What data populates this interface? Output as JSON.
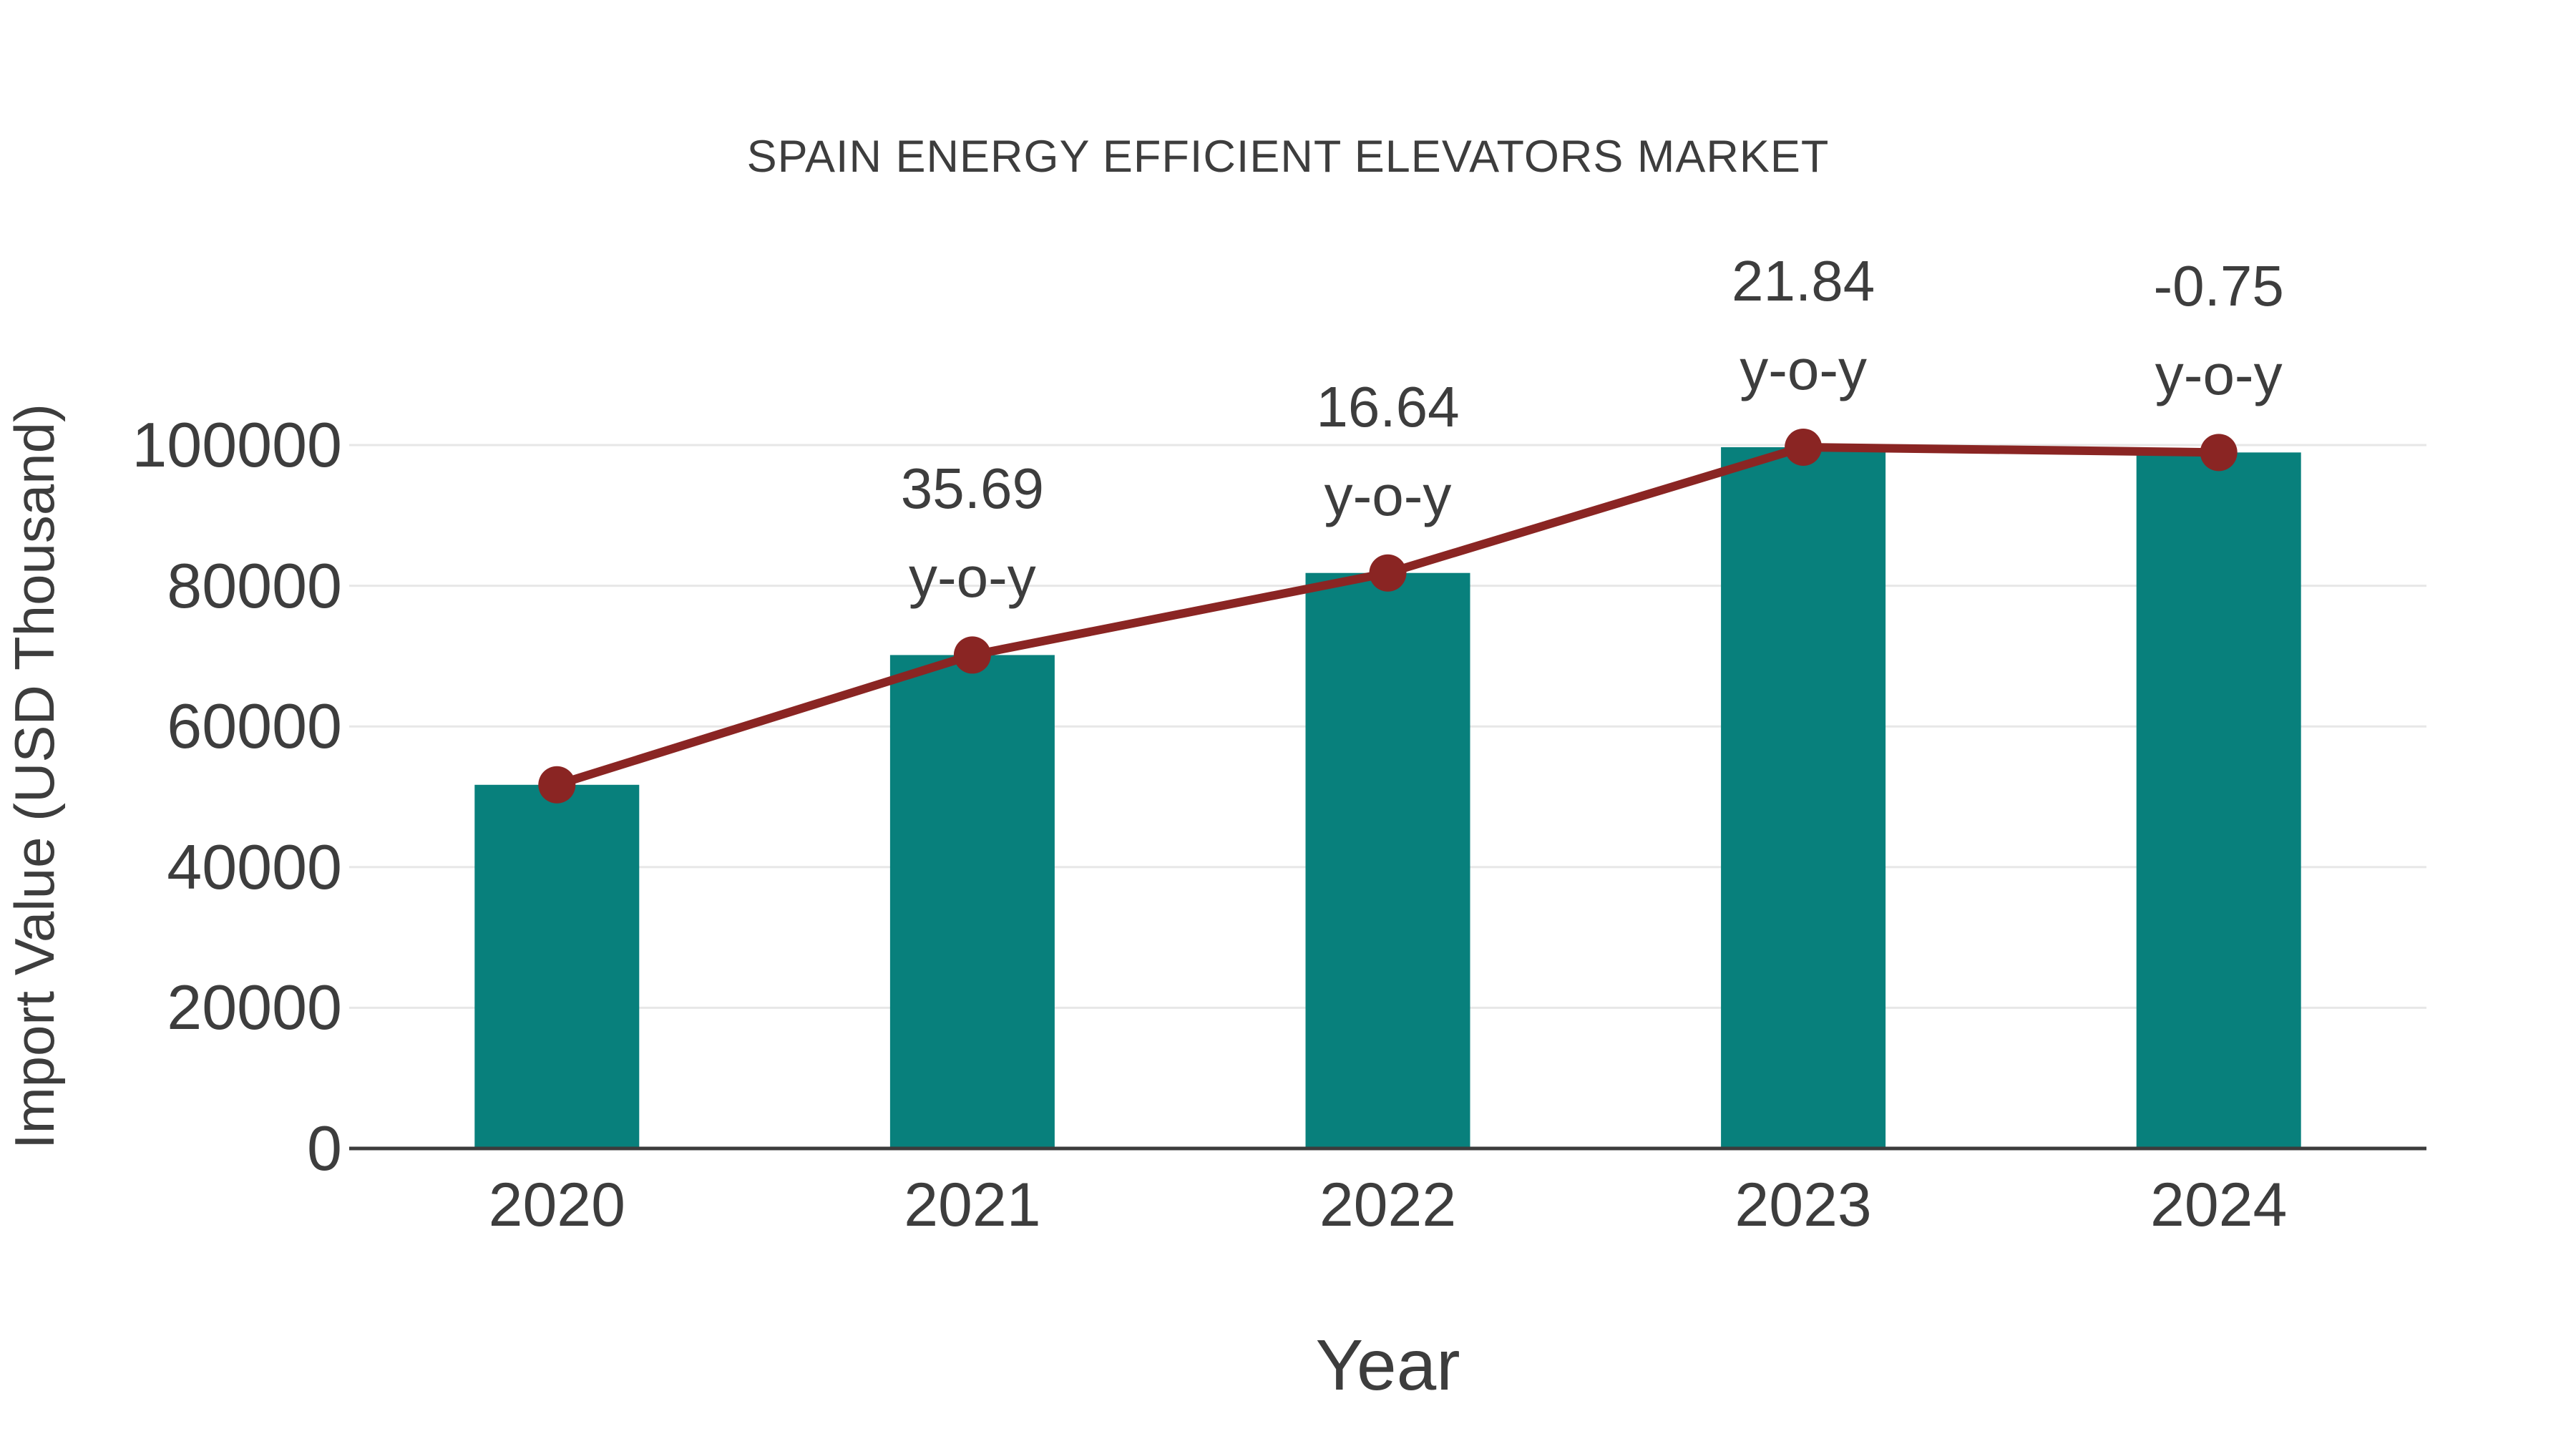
{
  "figure": {
    "background": "#ffffff"
  },
  "chart_data": {
    "type": "bar",
    "title": "SPAIN ENERGY EFFICIENT ELEVATORS MARKET",
    "xlabel": "Year",
    "ylabel": "Import Value (USD Thousand)",
    "categories": [
      "2020",
      "2021",
      "2022",
      "2023",
      "2024"
    ],
    "values": [
      51700,
      70150,
      81820,
      99700,
      98950
    ],
    "bar_color": "#08807C",
    "line_overlay": {
      "name": "import-value-trend",
      "values": [
        51700,
        70150,
        81820,
        99700,
        98950
      ],
      "color": "#8A2523"
    },
    "annotations": [
      {
        "category": "2021",
        "line1": "35.69",
        "line2": "y-o-y"
      },
      {
        "category": "2022",
        "line1": "16.64",
        "line2": "y-o-y"
      },
      {
        "category": "2023",
        "line1": "21.84",
        "line2": "y-o-y"
      },
      {
        "category": "2024",
        "line1": "-0.75",
        "line2": "y-o-y"
      }
    ],
    "ylim": [
      0,
      100000
    ],
    "yticks": [
      0,
      20000,
      40000,
      60000,
      80000,
      100000
    ],
    "grid": true,
    "legend": "none",
    "text_color": "#3d3d3d",
    "grid_color": "#e7e7e7",
    "axis_color": "#3c3c3c"
  }
}
